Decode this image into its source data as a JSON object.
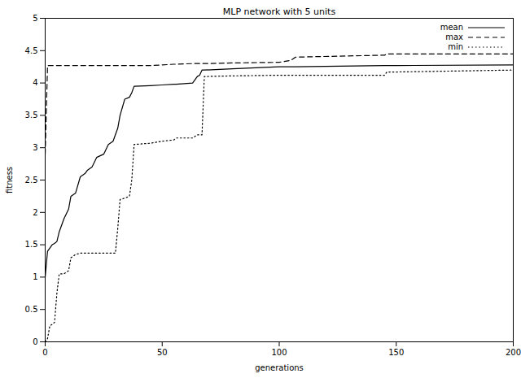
{
  "chart_data": {
    "type": "line",
    "title": "MLP network with 5 units",
    "x_label": "generations",
    "y_label": "fitness",
    "x": [
      0,
      1,
      2,
      3,
      4,
      5,
      6,
      8,
      10,
      11,
      13,
      15,
      17,
      18,
      20,
      22,
      25,
      27,
      29,
      30,
      31,
      32,
      34,
      36,
      37,
      38,
      45,
      50,
      55,
      56,
      63,
      65,
      66,
      67,
      68,
      80,
      100,
      105,
      107,
      145,
      146,
      150,
      200
    ],
    "series": [
      {
        "name": "mean",
        "color": "#000000",
        "line_style": "solid",
        "values": [
          1.0,
          1.4,
          1.45,
          1.5,
          1.52,
          1.55,
          1.7,
          1.9,
          2.05,
          2.25,
          2.3,
          2.55,
          2.6,
          2.65,
          2.7,
          2.85,
          2.9,
          3.05,
          3.1,
          3.2,
          3.3,
          3.5,
          3.75,
          3.78,
          3.85,
          3.95,
          3.96,
          3.97,
          3.98,
          3.98,
          4.0,
          4.1,
          4.12,
          4.2,
          4.2,
          4.22,
          4.25,
          4.25,
          4.25,
          4.27,
          4.27,
          4.27,
          4.28
        ]
      },
      {
        "name": "max",
        "color": "#000000",
        "line_style": "dashed",
        "values": [
          2.9,
          4.27,
          4.27,
          4.27,
          4.27,
          4.27,
          4.27,
          4.27,
          4.27,
          4.27,
          4.27,
          4.27,
          4.27,
          4.27,
          4.27,
          4.27,
          4.27,
          4.27,
          4.27,
          4.27,
          4.27,
          4.27,
          4.27,
          4.27,
          4.27,
          4.27,
          4.27,
          4.28,
          4.29,
          4.29,
          4.3,
          4.3,
          4.3,
          4.3,
          4.3,
          4.31,
          4.32,
          4.35,
          4.4,
          4.43,
          4.45,
          4.45,
          4.45
        ]
      },
      {
        "name": "min",
        "color": "#000000",
        "line_style": "dotted",
        "values": [
          0,
          0.05,
          0.25,
          0.27,
          0.3,
          0.75,
          1.05,
          1.05,
          1.1,
          1.3,
          1.35,
          1.37,
          1.37,
          1.37,
          1.37,
          1.37,
          1.37,
          1.37,
          1.37,
          1.37,
          1.75,
          2.2,
          2.22,
          2.25,
          2.5,
          3.05,
          3.07,
          3.1,
          3.12,
          3.15,
          3.15,
          3.2,
          3.2,
          3.2,
          4.1,
          4.11,
          4.12,
          4.12,
          4.12,
          4.12,
          4.17,
          4.17,
          4.2
        ]
      }
    ],
    "xlim": [
      0,
      200
    ],
    "xticks": [
      0,
      50,
      100,
      150,
      200
    ],
    "ylim": [
      0,
      5
    ],
    "yticks": [
      0,
      0.5,
      1,
      1.5,
      2,
      2.5,
      3,
      3.5,
      4,
      4.5,
      5
    ],
    "grid": false,
    "legend": "top-right"
  }
}
